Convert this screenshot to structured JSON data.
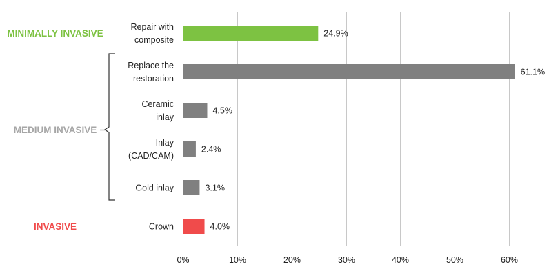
{
  "chart_data": {
    "type": "bar",
    "orientation": "horizontal",
    "categories": [
      [
        "Repair with",
        "composite"
      ],
      [
        "Replace the",
        "restoration"
      ],
      [
        "Ceramic",
        "inlay"
      ],
      [
        "Inlay",
        "(CAD/CAM)"
      ],
      [
        "Gold inlay"
      ],
      [
        "Crown"
      ]
    ],
    "values": [
      24.9,
      61.1,
      4.5,
      2.4,
      3.1,
      4.0
    ],
    "value_labels": [
      "24.9%",
      "61.1%",
      "4.5%",
      "2.4%",
      "3.1%",
      "4.0%"
    ],
    "bar_colors": [
      "#7dc242",
      "#808080",
      "#808080",
      "#808080",
      "#808080",
      "#f04b4b"
    ],
    "xlim": [
      0,
      60
    ],
    "x_ticks": [
      0,
      10,
      20,
      30,
      40,
      50,
      60
    ],
    "x_tick_labels": [
      "0%",
      "10%",
      "20%",
      "30%",
      "40%",
      "50%",
      "60%"
    ],
    "grid": "vertical",
    "legend": "none",
    "groups": [
      {
        "label": "MINIMALLY INVASIVE",
        "color": "#7dc242",
        "categories": [
          0
        ]
      },
      {
        "label": "MEDIUM INVASIVE",
        "color": "#a6a6a6",
        "categories": [
          1,
          2,
          3,
          4
        ]
      },
      {
        "label": "INVASIVE",
        "color": "#f04b4b",
        "categories": [
          5
        ]
      }
    ]
  }
}
